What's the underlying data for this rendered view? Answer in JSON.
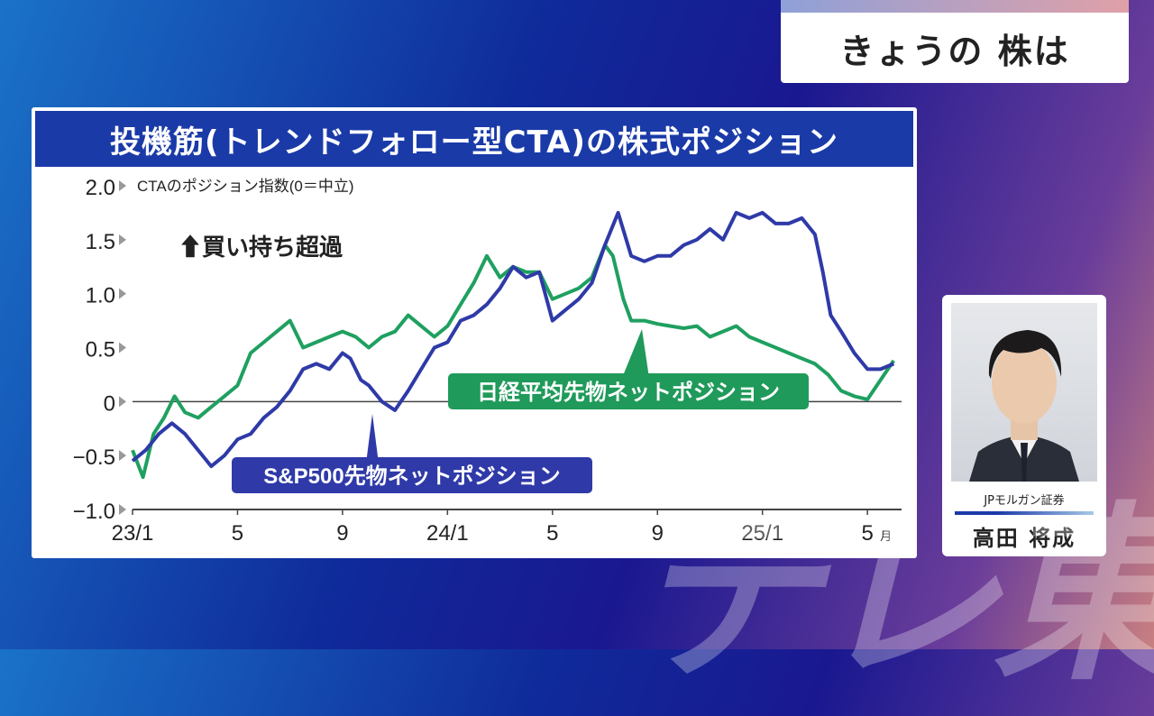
{
  "program": {
    "title": "きょうの 株は"
  },
  "watermark": {
    "text": "テレ東"
  },
  "chart_data": {
    "type": "line",
    "title": "投機筋(トレンドフォロー型CTA)の株式ポジション",
    "ylabel": "CTAのポジション指数(0＝中立)",
    "ylim": [
      -1.0,
      2.0
    ],
    "yticks": [
      "2.0",
      "1.5",
      "1.0",
      "0.5",
      "0",
      "−0.5",
      "−1.0"
    ],
    "xlim": [
      "2023-01",
      "2025-05"
    ],
    "xticks": [
      {
        "t": 0,
        "label": "23/1"
      },
      {
        "t": 4,
        "label": "5"
      },
      {
        "t": 8,
        "label": "9"
      },
      {
        "t": 12,
        "label": "24/1"
      },
      {
        "t": 16,
        "label": "5"
      },
      {
        "t": 20,
        "label": "9"
      },
      {
        "t": 24,
        "label": "25/1"
      },
      {
        "t": 28,
        "label": "5",
        "suffix": "月"
      }
    ],
    "annotation": "⬆買い持ち超過",
    "grid": false,
    "series": [
      {
        "name": "S&P500先物ネットポジション",
        "color": "#2f3aa8",
        "points": [
          [
            0,
            -0.55
          ],
          [
            0.5,
            -0.45
          ],
          [
            1,
            -0.3
          ],
          [
            1.5,
            -0.2
          ],
          [
            2,
            -0.3
          ],
          [
            2.5,
            -0.45
          ],
          [
            3,
            -0.6
          ],
          [
            3.5,
            -0.5
          ],
          [
            4,
            -0.35
          ],
          [
            4.5,
            -0.3
          ],
          [
            5,
            -0.15
          ],
          [
            5.5,
            -0.05
          ],
          [
            6,
            0.1
          ],
          [
            6.5,
            0.3
          ],
          [
            7,
            0.35
          ],
          [
            7.5,
            0.3
          ],
          [
            8,
            0.45
          ],
          [
            8.3,
            0.4
          ],
          [
            8.7,
            0.2
          ],
          [
            9,
            0.15
          ],
          [
            9.5,
            0.0
          ],
          [
            10,
            -0.08
          ],
          [
            10.5,
            0.1
          ],
          [
            11,
            0.3
          ],
          [
            11.5,
            0.5
          ],
          [
            12,
            0.55
          ],
          [
            12.5,
            0.75
          ],
          [
            13,
            0.8
          ],
          [
            13.5,
            0.9
          ],
          [
            14,
            1.05
          ],
          [
            14.5,
            1.25
          ],
          [
            15,
            1.15
          ],
          [
            15.5,
            1.2
          ],
          [
            16,
            0.75
          ],
          [
            16.5,
            0.85
          ],
          [
            17,
            0.95
          ],
          [
            17.5,
            1.1
          ],
          [
            18,
            1.45
          ],
          [
            18.5,
            1.75
          ],
          [
            19,
            1.35
          ],
          [
            19.5,
            1.3
          ],
          [
            20,
            1.35
          ],
          [
            20.5,
            1.35
          ],
          [
            21,
            1.45
          ],
          [
            21.5,
            1.5
          ],
          [
            22,
            1.6
          ],
          [
            22.5,
            1.5
          ],
          [
            23,
            1.75
          ],
          [
            23.5,
            1.7
          ],
          [
            24,
            1.75
          ],
          [
            24.5,
            1.65
          ],
          [
            25,
            1.65
          ],
          [
            25.5,
            1.7
          ],
          [
            26,
            1.55
          ],
          [
            26.3,
            1.2
          ],
          [
            26.6,
            0.8
          ],
          [
            27,
            0.65
          ],
          [
            27.5,
            0.45
          ],
          [
            28,
            0.3
          ],
          [
            28.5,
            0.3
          ],
          [
            29,
            0.35
          ]
        ]
      },
      {
        "name": "日経平均先物ネットポジション",
        "color": "#1fa060",
        "points": [
          [
            0,
            -0.45
          ],
          [
            0.4,
            -0.7
          ],
          [
            0.8,
            -0.3
          ],
          [
            1.2,
            -0.15
          ],
          [
            1.6,
            0.05
          ],
          [
            2,
            -0.1
          ],
          [
            2.5,
            -0.15
          ],
          [
            3,
            -0.05
          ],
          [
            3.5,
            0.05
          ],
          [
            4,
            0.15
          ],
          [
            4.5,
            0.45
          ],
          [
            5,
            0.55
          ],
          [
            5.5,
            0.65
          ],
          [
            6,
            0.75
          ],
          [
            6.5,
            0.5
          ],
          [
            7,
            0.55
          ],
          [
            7.5,
            0.6
          ],
          [
            8,
            0.65
          ],
          [
            8.5,
            0.6
          ],
          [
            9,
            0.5
          ],
          [
            9.5,
            0.6
          ],
          [
            10,
            0.65
          ],
          [
            10.5,
            0.8
          ],
          [
            11,
            0.7
          ],
          [
            11.5,
            0.6
          ],
          [
            12,
            0.7
          ],
          [
            12.5,
            0.9
          ],
          [
            13,
            1.1
          ],
          [
            13.5,
            1.35
          ],
          [
            14,
            1.15
          ],
          [
            14.5,
            1.25
          ],
          [
            15,
            1.2
          ],
          [
            15.5,
            1.2
          ],
          [
            16,
            0.95
          ],
          [
            16.5,
            1.0
          ],
          [
            17,
            1.05
          ],
          [
            17.5,
            1.15
          ],
          [
            18,
            1.45
          ],
          [
            18.3,
            1.35
          ],
          [
            18.7,
            0.95
          ],
          [
            19,
            0.75
          ],
          [
            19.5,
            0.75
          ],
          [
            20,
            0.72
          ],
          [
            20.5,
            0.7
          ],
          [
            21,
            0.68
          ],
          [
            21.5,
            0.7
          ],
          [
            22,
            0.6
          ],
          [
            22.5,
            0.65
          ],
          [
            23,
            0.7
          ],
          [
            23.5,
            0.6
          ],
          [
            24,
            0.55
          ],
          [
            24.5,
            0.5
          ],
          [
            25,
            0.45
          ],
          [
            25.5,
            0.4
          ],
          [
            26,
            0.35
          ],
          [
            26.5,
            0.25
          ],
          [
            27,
            0.1
          ],
          [
            27.5,
            0.05
          ],
          [
            28,
            0.02
          ],
          [
            28.5,
            0.2
          ],
          [
            29,
            0.38
          ]
        ]
      }
    ],
    "labels": [
      {
        "series": 0,
        "text": "S&P500先物ネットポジション",
        "bg": "#2f3aa8"
      },
      {
        "series": 1,
        "text": "日経平均先物ネットポジション",
        "bg": "#1f9a5a"
      }
    ]
  },
  "person": {
    "company": "JPモルガン証券",
    "name": "高田 将成"
  }
}
